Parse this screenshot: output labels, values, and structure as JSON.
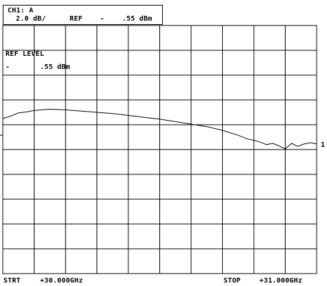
{
  "header": {
    "channel": "CH1: A",
    "scale": "2.0 dB/",
    "ref_label": "REF",
    "ref_sign": "-",
    "ref_value": ".55 dBm"
  },
  "ref_level": {
    "title": "REF LEVEL",
    "sign": "-",
    "value": ".55 dBm"
  },
  "trace_marker": "1",
  "footer": {
    "start_label": "STRT",
    "start_value": "+30.000GHz",
    "stop_label": "STOP",
    "stop_value": "+31.000GHz"
  },
  "chart_data": {
    "type": "line",
    "x_unit": "GHz",
    "y_unit": "dB",
    "xlim": [
      30.0,
      31.0
    ],
    "ylim": [
      -11.55,
      8.45
    ],
    "grid": true,
    "x_divisions": 10,
    "y_divisions": 10,
    "series": [
      {
        "x": [
          30.0,
          30.02,
          30.05,
          30.08,
          30.1,
          30.15,
          30.2,
          30.25,
          30.3,
          30.35,
          30.4,
          30.45,
          30.5,
          30.55,
          30.6,
          30.65,
          30.7,
          30.75,
          30.78,
          30.8,
          30.82,
          30.84,
          30.86,
          30.88,
          30.9,
          30.92,
          30.94,
          30.96,
          30.98,
          31.0
        ],
        "y": [
          0.95,
          1.1,
          1.4,
          1.5,
          1.6,
          1.7,
          1.65,
          1.55,
          1.45,
          1.35,
          1.2,
          1.05,
          0.9,
          0.7,
          0.5,
          0.3,
          0.0,
          -0.4,
          -0.7,
          -0.8,
          -0.95,
          -1.15,
          -1.05,
          -1.25,
          -1.5,
          -1.05,
          -1.3,
          -1.1,
          -1.0,
          -1.1
        ]
      }
    ]
  }
}
